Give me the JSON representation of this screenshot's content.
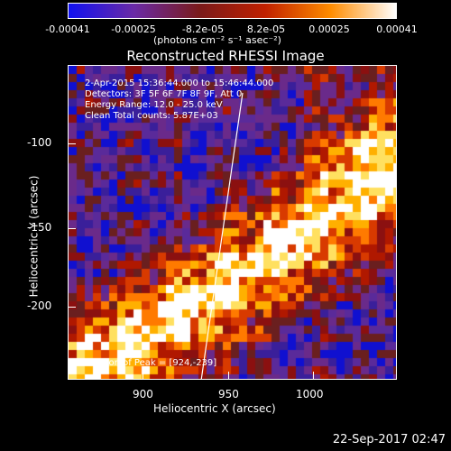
{
  "colorbar": {
    "ticks": [
      "-0.00041",
      "-0.00025",
      "-8.2e-05",
      "8.2e-05",
      "0.00025",
      "0.00041"
    ],
    "units": "(photons cm⁻² s⁻¹ asec⁻²)",
    "colors": [
      "#1010f0",
      "#6a2aa6",
      "#7a1a1a",
      "#c02000",
      "#ff8c00",
      "#ffffff"
    ]
  },
  "plot": {
    "title": "Reconstructed RHESSI Image",
    "annotations": {
      "time": "2-Apr-2015 15:36:44.000 to 15:46:44.000",
      "detectors": "Detectors: 3F 5F 6F 7F 8F 9F, Att 0",
      "energy": "Energy Range: 12.0 - 25.0 keV",
      "clean": "Clean    Total counts: 5.87E+03",
      "peak": "Position of Peak = [924,-239]"
    },
    "x_axis": {
      "title": "Heliocentric X (arcsec)",
      "ticks": [
        "900",
        "950",
        "1000"
      ]
    },
    "y_axis": {
      "title": "Heliocentric Y (arcsec)",
      "ticks": [
        "-100",
        "-150",
        "-200"
      ]
    }
  },
  "footer": {
    "timestamp": "22-Sep-2017 02:47"
  }
}
